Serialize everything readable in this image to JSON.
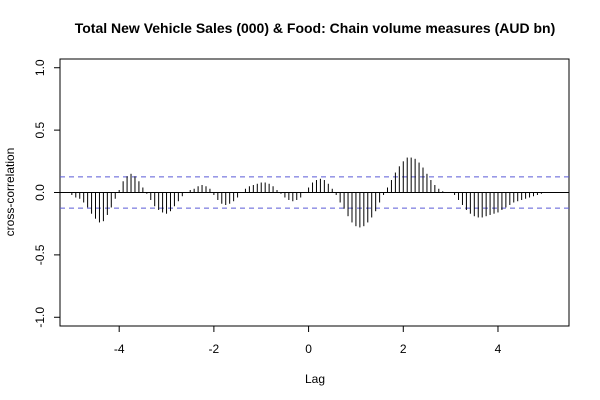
{
  "chart_data": {
    "type": "bar",
    "title": "Total New Vehicle Sales (000) & Food: Chain volume measures (AUD bn)",
    "xlabel": "Lag",
    "ylabel": "cross-correlation",
    "xlim": [
      -5.25,
      5.5
    ],
    "ylim": [
      -1.07,
      1.07
    ],
    "x_ticks": [
      -4,
      -2,
      0,
      2,
      4
    ],
    "x_tick_labels": [
      "-4",
      "-2",
      "0",
      "2",
      "4"
    ],
    "y_ticks": [
      -1.0,
      -0.5,
      0.0,
      0.5,
      1.0
    ],
    "y_tick_labels": [
      "-1.0",
      "-0.5",
      "0.0",
      "0.5",
      "1.0"
    ],
    "confidence_limit": 0.125,
    "colors": {
      "bars": "#000000",
      "confidence_lines": "#5b5bd6",
      "zero_line": "#000000"
    },
    "x": [
      -5.0,
      -4.9167,
      -4.8333,
      -4.75,
      -4.6667,
      -4.5833,
      -4.5,
      -4.4167,
      -4.3333,
      -4.25,
      -4.1667,
      -4.0833,
      -4.0,
      -3.9167,
      -3.8333,
      -3.75,
      -3.6667,
      -3.5833,
      -3.5,
      -3.4167,
      -3.3333,
      -3.25,
      -3.1667,
      -3.0833,
      -3.0,
      -2.9167,
      -2.8333,
      -2.75,
      -2.6667,
      -2.5833,
      -2.5,
      -2.4167,
      -2.3333,
      -2.25,
      -2.1667,
      -2.0833,
      -2.0,
      -1.9167,
      -1.8333,
      -1.75,
      -1.6667,
      -1.5833,
      -1.5,
      -1.4167,
      -1.3333,
      -1.25,
      -1.1667,
      -1.0833,
      -1.0,
      -0.9167,
      -0.8333,
      -0.75,
      -0.6667,
      -0.5833,
      -0.5,
      -0.4167,
      -0.3333,
      -0.25,
      -0.1667,
      -0.0833,
      0.0,
      0.0833,
      0.1667,
      0.25,
      0.3333,
      0.4167,
      0.5,
      0.5833,
      0.6667,
      0.75,
      0.8333,
      0.9167,
      1.0,
      1.0833,
      1.1667,
      1.25,
      1.3333,
      1.4167,
      1.5,
      1.5833,
      1.6667,
      1.75,
      1.8333,
      1.9167,
      2.0,
      2.0833,
      2.1667,
      2.25,
      2.3333,
      2.4167,
      2.5,
      2.5833,
      2.6667,
      2.75,
      2.8333,
      2.9167,
      3.0,
      3.0833,
      3.1667,
      3.25,
      3.3333,
      3.4167,
      3.5,
      3.5833,
      3.6667,
      3.75,
      3.8333,
      3.9167,
      4.0,
      4.0833,
      4.1667,
      4.25,
      4.3333,
      4.4167,
      4.5,
      4.5833,
      4.6667,
      4.75,
      4.8333,
      4.9167,
      5.0
    ],
    "values": [
      -0.02,
      -0.04,
      -0.05,
      -0.08,
      -0.12,
      -0.17,
      -0.21,
      -0.24,
      -0.23,
      -0.18,
      -0.12,
      -0.05,
      0.02,
      0.09,
      0.13,
      0.15,
      0.13,
      0.09,
      0.04,
      -0.01,
      -0.06,
      -0.11,
      -0.14,
      -0.16,
      -0.17,
      -0.15,
      -0.11,
      -0.07,
      -0.03,
      0.0,
      0.02,
      0.03,
      0.05,
      0.06,
      0.05,
      0.03,
      -0.02,
      -0.06,
      -0.09,
      -0.1,
      -0.09,
      -0.07,
      -0.04,
      0.0,
      0.03,
      0.05,
      0.06,
      0.07,
      0.08,
      0.08,
      0.07,
      0.05,
      0.02,
      -0.01,
      -0.04,
      -0.06,
      -0.07,
      -0.06,
      -0.04,
      0.0,
      0.04,
      0.08,
      0.1,
      0.11,
      0.1,
      0.07,
      0.03,
      -0.02,
      -0.08,
      -0.13,
      -0.19,
      -0.24,
      -0.27,
      -0.28,
      -0.27,
      -0.24,
      -0.2,
      -0.15,
      -0.08,
      -0.02,
      0.04,
      0.1,
      0.16,
      0.21,
      0.25,
      0.28,
      0.28,
      0.27,
      0.24,
      0.2,
      0.15,
      0.1,
      0.06,
      0.03,
      0.01,
      0.0,
      0.0,
      -0.02,
      -0.06,
      -0.1,
      -0.14,
      -0.17,
      -0.19,
      -0.2,
      -0.2,
      -0.19,
      -0.18,
      -0.17,
      -0.16,
      -0.14,
      -0.12,
      -0.1,
      -0.08,
      -0.07,
      -0.06,
      -0.05,
      -0.04,
      -0.03,
      -0.02,
      -0.01,
      0.0
    ]
  }
}
